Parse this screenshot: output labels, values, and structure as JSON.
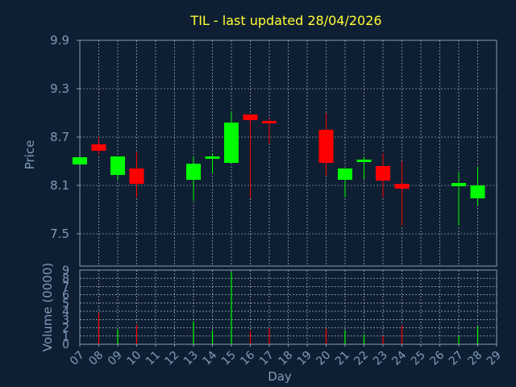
{
  "chart_data": {
    "type": "candlestick",
    "title": "TIL - last updated 28/04/2026",
    "xlabel": "Day",
    "price_panel": {
      "ylabel": "Price",
      "ylim": [
        7.1,
        9.9
      ],
      "yticks": [
        "9.9",
        "9.3",
        "8.7",
        "8.1",
        "7.5"
      ],
      "ytick_values": [
        9.9,
        9.3,
        8.7,
        8.1,
        7.5
      ]
    },
    "volume_panel": {
      "ylabel": "Volume (0000)",
      "ylim": [
        0,
        9
      ],
      "yticks": [
        "9",
        "8",
        "7",
        "6",
        "5",
        "4",
        "3",
        "2",
        "1",
        "0"
      ],
      "ytick_values": [
        9,
        8,
        7,
        6,
        5,
        4,
        3,
        2,
        1,
        0
      ]
    },
    "x_ticks": [
      "07",
      "08",
      "09",
      "10",
      "11",
      "12",
      "13",
      "14",
      "15",
      "16",
      "17",
      "18",
      "19",
      "20",
      "21",
      "22",
      "23",
      "24",
      "25",
      "26",
      "27",
      "28",
      "29"
    ],
    "grid": true,
    "colors": {
      "up": "#00ff00",
      "down": "#ff0000",
      "background": "#0f1f33",
      "grid": "#c8d0dc",
      "axis_text": "#7f9ab8",
      "title": "#ffff33"
    },
    "candles": [
      {
        "day": "07",
        "open": 8.36,
        "high": 8.45,
        "low": 8.36,
        "close": 8.45,
        "volume": 0.0
      },
      {
        "day": "08",
        "open": 8.61,
        "high": 8.7,
        "low": 8.48,
        "close": 8.53,
        "volume": 3.8
      },
      {
        "day": "09",
        "open": 8.23,
        "high": 8.46,
        "low": 8.17,
        "close": 8.46,
        "volume": 1.8
      },
      {
        "day": "10",
        "open": 8.31,
        "high": 8.51,
        "low": 7.95,
        "close": 8.12,
        "volume": 2.4
      },
      {
        "day": "13",
        "open": 8.17,
        "high": 8.46,
        "low": 7.91,
        "close": 8.37,
        "volume": 2.8
      },
      {
        "day": "14",
        "open": 8.44,
        "high": 8.5,
        "low": 8.25,
        "close": 8.46,
        "volume": 1.7
      },
      {
        "day": "15",
        "open": 8.38,
        "high": 9.02,
        "low": 8.38,
        "close": 8.88,
        "volume": 8.8
      },
      {
        "day": "16",
        "open": 8.98,
        "high": 8.98,
        "low": 7.95,
        "close": 8.91,
        "volume": 1.6
      },
      {
        "day": "17",
        "open": 8.9,
        "high": 8.93,
        "low": 8.62,
        "close": 8.88,
        "volume": 1.9
      },
      {
        "day": "20",
        "open": 8.79,
        "high": 9.0,
        "low": 8.22,
        "close": 8.38,
        "volume": 1.9
      },
      {
        "day": "21",
        "open": 8.17,
        "high": 8.31,
        "low": 7.95,
        "close": 8.31,
        "volume": 1.7
      },
      {
        "day": "22",
        "open": 8.4,
        "high": 8.46,
        "low": 8.18,
        "close": 8.42,
        "volume": 1.2
      },
      {
        "day": "23",
        "open": 8.34,
        "high": 8.5,
        "low": 7.95,
        "close": 8.16,
        "volume": 1.0
      },
      {
        "day": "24",
        "open": 8.12,
        "high": 8.4,
        "low": 7.6,
        "close": 8.06,
        "volume": 2.3
      },
      {
        "day": "27",
        "open": 8.09,
        "high": 8.27,
        "low": 7.6,
        "close": 8.13,
        "volume": 1.0
      },
      {
        "day": "28",
        "open": 7.94,
        "high": 8.33,
        "low": 7.85,
        "close": 8.1,
        "volume": 2.2
      }
    ]
  }
}
